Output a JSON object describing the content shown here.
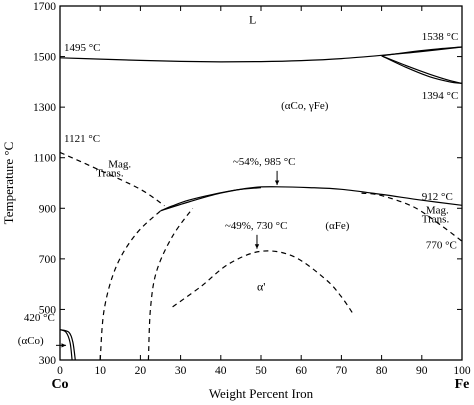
{
  "chart_data": {
    "type": "line",
    "xlabel": "Weight Percent Iron",
    "ylabel": "Temperature °C",
    "xlim": [
      0,
      100
    ],
    "ylim": [
      300,
      1700
    ],
    "x_ticks": [
      0,
      10,
      20,
      30,
      40,
      50,
      60,
      70,
      80,
      90,
      100
    ],
    "y_ticks": [
      300,
      500,
      700,
      900,
      1100,
      1300,
      1500,
      1700
    ],
    "x_end_labels": {
      "left": "Co",
      "right": "Fe"
    },
    "curves": [
      {
        "style": "solid",
        "points": [
          [
            0,
            1495
          ],
          [
            10,
            1490
          ],
          [
            20,
            1485
          ],
          [
            30,
            1481
          ],
          [
            40,
            1479
          ],
          [
            50,
            1480
          ],
          [
            60,
            1484
          ],
          [
            70,
            1492
          ],
          [
            80,
            1505
          ],
          [
            90,
            1520
          ],
          [
            100,
            1538
          ]
        ]
      },
      {
        "style": "solid",
        "points": [
          [
            80,
            1503
          ],
          [
            88,
            1520
          ],
          [
            94,
            1530
          ],
          [
            100,
            1538
          ]
        ]
      },
      {
        "style": "solid",
        "points": [
          [
            80,
            1503
          ],
          [
            86,
            1465
          ],
          [
            92,
            1430
          ],
          [
            97,
            1405
          ],
          [
            100,
            1394
          ]
        ]
      },
      {
        "style": "solid",
        "points": [
          [
            80,
            1503
          ],
          [
            86,
            1458
          ],
          [
            92,
            1420
          ],
          [
            97,
            1400
          ],
          [
            100,
            1394
          ]
        ]
      },
      {
        "style": "dashed",
        "points": [
          [
            0,
            1121
          ],
          [
            10,
            1050
          ],
          [
            20,
            975
          ],
          [
            26,
            910
          ]
        ]
      },
      {
        "style": "solid",
        "points": [
          [
            25,
            890
          ],
          [
            32,
            925
          ],
          [
            40,
            960
          ],
          [
            48,
            982
          ],
          [
            54,
            985
          ],
          [
            62,
            982
          ],
          [
            70,
            975
          ],
          [
            80,
            955
          ],
          [
            90,
            932
          ],
          [
            100,
            912
          ]
        ]
      },
      {
        "style": "solid",
        "points": [
          [
            25,
            890
          ],
          [
            28,
            910
          ],
          [
            32,
            932
          ],
          [
            38,
            955
          ],
          [
            44,
            973
          ],
          [
            50,
            982
          ]
        ]
      },
      {
        "style": "dashed",
        "points": [
          [
            75,
            960
          ],
          [
            80,
            950
          ],
          [
            88,
            905
          ],
          [
            95,
            830
          ],
          [
            100,
            770
          ]
        ]
      },
      {
        "style": "dashed",
        "points": [
          [
            10,
            300
          ],
          [
            11,
            500
          ],
          [
            14,
            670
          ],
          [
            19,
            800
          ],
          [
            25,
            890
          ]
        ]
      },
      {
        "style": "dashed",
        "points": [
          [
            22,
            300
          ],
          [
            22.5,
            500
          ],
          [
            24,
            650
          ],
          [
            28,
            790
          ],
          [
            33,
            900
          ]
        ]
      },
      {
        "style": "dashed",
        "points": [
          [
            28,
            510
          ],
          [
            35,
            590
          ],
          [
            42,
            680
          ],
          [
            50,
            730
          ],
          [
            58,
            710
          ],
          [
            66,
            620
          ],
          [
            70,
            550
          ],
          [
            73,
            480
          ]
        ]
      },
      {
        "style": "solid",
        "points": [
          [
            0,
            420
          ],
          [
            1.5,
            410
          ],
          [
            2.5,
            370
          ],
          [
            3,
            300
          ]
        ]
      },
      {
        "style": "solid",
        "points": [
          [
            0,
            420
          ],
          [
            2.2,
            410
          ],
          [
            3.2,
            370
          ],
          [
            3.8,
            300
          ]
        ]
      }
    ],
    "annotations": [
      {
        "text": "1495 °C",
        "x": 1,
        "y": 1522
      },
      {
        "text": "1538 °C",
        "x": 90,
        "y": 1566
      },
      {
        "text": "1394 °C",
        "x": 90,
        "y": 1332
      },
      {
        "text": "L",
        "x": 47,
        "y": 1630
      },
      {
        "text": "(αCo, γFe)",
        "x": 55,
        "y": 1292
      },
      {
        "text": "1121 °C",
        "x": 1,
        "y": 1162
      },
      {
        "text": "Mag.",
        "x": 12,
        "y": 1062
      },
      {
        "text": "Trans.",
        "x": 9,
        "y": 1026
      },
      {
        "text": "~54%, 985 °C",
        "x": 43,
        "y": 1072
      },
      {
        "text": "912 °C",
        "x": 90,
        "y": 932
      },
      {
        "text": "~49%, 730 °C",
        "x": 41,
        "y": 818
      },
      {
        "text": "(αFe)",
        "x": 66,
        "y": 818
      },
      {
        "text": "Mag.",
        "x": 91,
        "y": 880
      },
      {
        "text": "Trans.",
        "x": 90,
        "y": 843
      },
      {
        "text": "770 °C",
        "x": 91,
        "y": 740
      },
      {
        "text": "α'",
        "x": 49,
        "y": 575
      },
      {
        "text": "420 °C",
        "x": -9,
        "y": 455
      },
      {
        "text": "(αCo)",
        "x": -10.5,
        "y": 363
      }
    ],
    "grid": false,
    "legend": "none"
  }
}
